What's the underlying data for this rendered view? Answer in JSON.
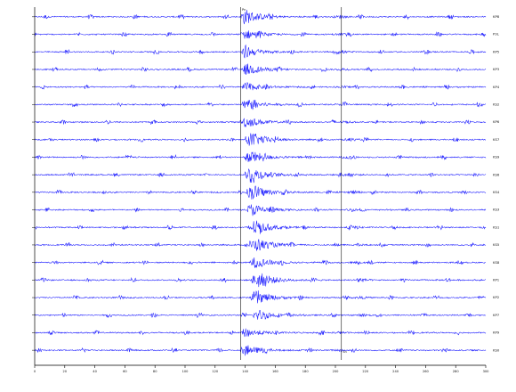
{
  "chart_data": {
    "type": "line",
    "title": "",
    "xlabel": "",
    "ylabel": "",
    "xlim": [
      0,
      300
    ],
    "x_ticks": [
      0,
      20,
      40,
      60,
      80,
      100,
      120,
      140,
      160,
      180,
      200,
      220,
      240,
      260,
      280,
      300
    ],
    "trace_color": "#1a1aff",
    "axis_color": "#000000",
    "traces": [
      {
        "station": "KP8",
        "onset": 137,
        "amp": 0.9,
        "coda_peak": 140,
        "sec": 204
      },
      {
        "station": "P3L",
        "onset": 137,
        "amp": 0.55,
        "coda_peak": 140,
        "sec": 204
      },
      {
        "station": "KP5",
        "onset": 138,
        "amp": 0.6,
        "coda_peak": 141,
        "sec": 205
      },
      {
        "station": "KP3",
        "onset": 138,
        "amp": 0.65,
        "coda_peak": 142,
        "sec": 205
      },
      {
        "station": "KP4",
        "onset": 138,
        "amp": 0.5,
        "coda_peak": 141,
        "sec": 206
      },
      {
        "station": "KS2",
        "onset": 138,
        "amp": 0.6,
        "coda_peak": 142,
        "sec": 206
      },
      {
        "station": "KP6",
        "onset": 138,
        "amp": 0.55,
        "coda_peak": 142,
        "sec": 207
      },
      {
        "station": "KS7",
        "onset": 140,
        "amp": 0.8,
        "coda_peak": 145,
        "sec": 210
      },
      {
        "station": "KS9",
        "onset": 140,
        "amp": 0.75,
        "coda_peak": 144,
        "sec": 208
      },
      {
        "station": "KS6",
        "onset": 140,
        "amp": 0.9,
        "coda_peak": 145,
        "sec": 210
      },
      {
        "station": "KS4",
        "onset": 141,
        "amp": 0.85,
        "coda_peak": 146,
        "sec": 212
      },
      {
        "station": "KS3",
        "onset": 141,
        "amp": 0.7,
        "coda_peak": 145,
        "sec": 211
      },
      {
        "station": "KS1",
        "onset": 142,
        "amp": 0.8,
        "coda_peak": 147,
        "sec": 214
      },
      {
        "station": "KS5",
        "onset": 143,
        "amp": 0.7,
        "coda_peak": 149,
        "sec": 216
      },
      {
        "station": "KS8",
        "onset": 143,
        "amp": 0.6,
        "coda_peak": 148,
        "sec": 215
      },
      {
        "station": "KP1",
        "onset": 144,
        "amp": 0.85,
        "coda_peak": 150,
        "sec": 218
      },
      {
        "station": "KP2",
        "onset": 144,
        "amp": 0.65,
        "coda_peak": 149,
        "sec": 217
      },
      {
        "station": "KP7",
        "onset": 145,
        "amp": 0.6,
        "coda_peak": 150,
        "sec": 218
      },
      {
        "station": "KP9",
        "onset": 137,
        "amp": 0.5,
        "coda_peak": 141,
        "sec": 203
      },
      {
        "station": "KS0",
        "onset": 137,
        "amp": 0.6,
        "coda_peak": 141,
        "sec": 203
      }
    ],
    "picks": [
      {
        "label": "Pn",
        "x": 137
      },
      {
        "label": "Sn",
        "x": 204
      }
    ]
  }
}
